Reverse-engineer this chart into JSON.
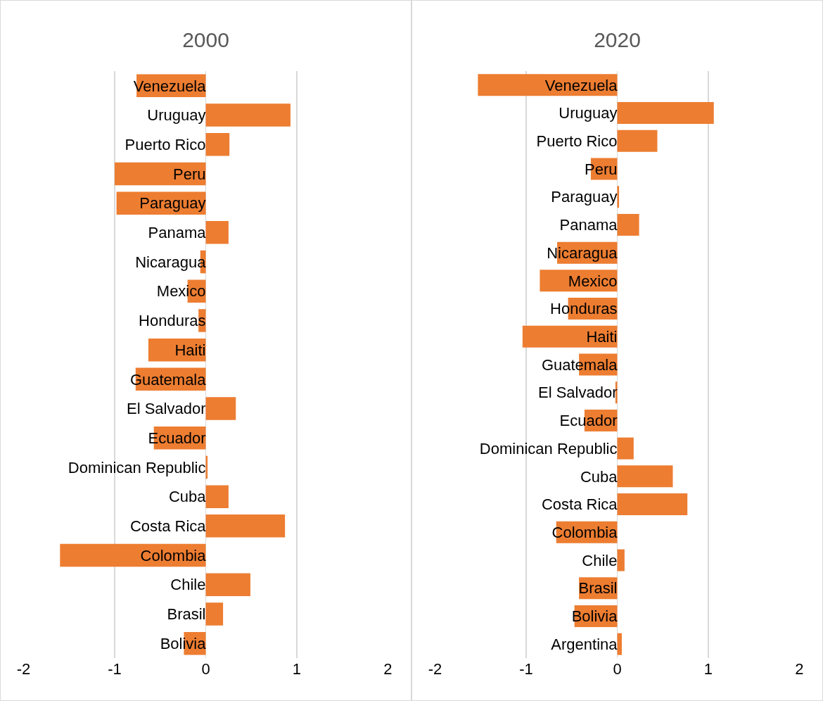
{
  "chart_data": [
    {
      "type": "bar",
      "title": "2000",
      "orientation": "horizontal",
      "color": "#ed7d31",
      "grid": "x",
      "xlim": [
        -2,
        2
      ],
      "xticks": [
        -2,
        -1,
        0,
        1,
        2
      ],
      "categories": [
        "Venezuela",
        "Uruguay",
        "Puerto Rico",
        "Peru",
        "Paraguay",
        "Panama",
        "Nicaragua",
        "Mexico",
        "Honduras",
        "Haiti",
        "Guatemala",
        "El Salvador",
        "Ecuador",
        "Dominican Republic",
        "Cuba",
        "Costa Rica",
        "Colombia",
        "Chile",
        "Brasil",
        "Bolivia"
      ],
      "values": [
        -0.76,
        0.93,
        0.26,
        -1.0,
        -0.98,
        0.25,
        -0.06,
        -0.2,
        -0.08,
        -0.63,
        -0.77,
        0.33,
        -0.57,
        0.02,
        0.25,
        0.87,
        -1.6,
        0.49,
        0.19,
        -0.24
      ]
    },
    {
      "type": "bar",
      "title": "2020",
      "orientation": "horizontal",
      "color": "#ed7d31",
      "grid": "x",
      "xlim": [
        -2,
        2
      ],
      "xticks": [
        -2,
        -1,
        0,
        1,
        2
      ],
      "categories": [
        "Venezuela",
        "Uruguay",
        "Puerto Rico",
        "Peru",
        "Paraguay",
        "Panama",
        "Nicaragua",
        "Mexico",
        "Honduras",
        "Haiti",
        "Guatemala",
        "El Salvador",
        "Ecuador",
        "Dominican Republic",
        "Cuba",
        "Costa Rica",
        "Colombia",
        "Chile",
        "Brasil",
        "Bolivia",
        "Argentina"
      ],
      "values": [
        -1.53,
        1.06,
        0.44,
        -0.29,
        0.02,
        0.24,
        -0.66,
        -0.85,
        -0.54,
        -1.04,
        -0.42,
        -0.02,
        -0.36,
        0.18,
        0.61,
        0.77,
        -0.67,
        0.08,
        -0.42,
        -0.47,
        0.05
      ]
    }
  ]
}
